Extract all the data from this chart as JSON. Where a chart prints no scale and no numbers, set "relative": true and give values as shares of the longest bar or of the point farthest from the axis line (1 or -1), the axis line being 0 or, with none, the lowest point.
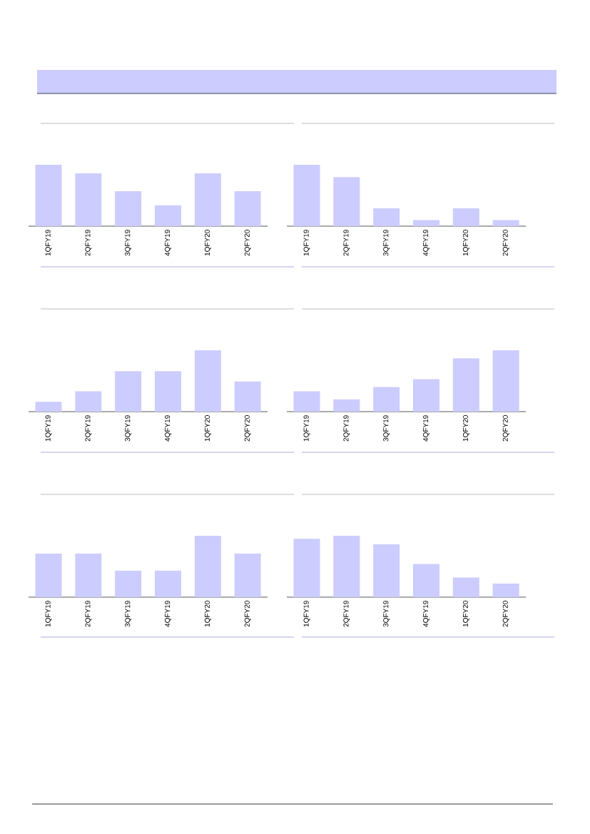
{
  "chart_data": [
    {
      "type": "bar",
      "relative": true,
      "categories": [
        "1QFY19",
        "2QFY19",
        "3QFY19",
        "4QFY19",
        "1QFY20",
        "2QFY20"
      ],
      "values": [
        1,
        0.86,
        0.57,
        0.34,
        0.86,
        0.57
      ],
      "color": "#ccccff"
    },
    {
      "type": "bar",
      "relative": true,
      "categories": [
        "1QFY19",
        "2QFY19",
        "3QFY19",
        "4QFY19",
        "1QFY20",
        "2QFY20"
      ],
      "values": [
        1,
        0.8,
        0.29,
        0.1,
        0.29,
        0.1
      ],
      "color": "#ccccff"
    },
    {
      "type": "bar",
      "relative": true,
      "categories": [
        "1QFY19",
        "2QFY19",
        "3QFY19",
        "4QFY19",
        "1QFY20",
        "2QFY20"
      ],
      "values": [
        0.16,
        0.33,
        0.66,
        0.66,
        1,
        0.49
      ],
      "color": "#ccccff"
    },
    {
      "type": "bar",
      "relative": true,
      "categories": [
        "1QFY19",
        "2QFY19",
        "3QFY19",
        "4QFY19",
        "1QFY20",
        "2QFY20"
      ],
      "values": [
        0.33,
        0.2,
        0.4,
        0.53,
        0.87,
        1
      ],
      "color": "#ccccff"
    },
    {
      "type": "bar",
      "relative": true,
      "categories": [
        "1QFY19",
        "2QFY19",
        "3QFY19",
        "4QFY19",
        "1QFY20",
        "2QFY20"
      ],
      "values": [
        0.71,
        0.71,
        0.43,
        0.43,
        1,
        0.71
      ],
      "color": "#ccccff"
    },
    {
      "type": "bar",
      "relative": true,
      "categories": [
        "1QFY19",
        "2QFY19",
        "3QFY19",
        "4QFY19",
        "1QFY20",
        "2QFY20"
      ],
      "values": [
        0.95,
        1,
        0.86,
        0.54,
        0.32,
        0.22
      ],
      "color": "#ccccff"
    }
  ]
}
